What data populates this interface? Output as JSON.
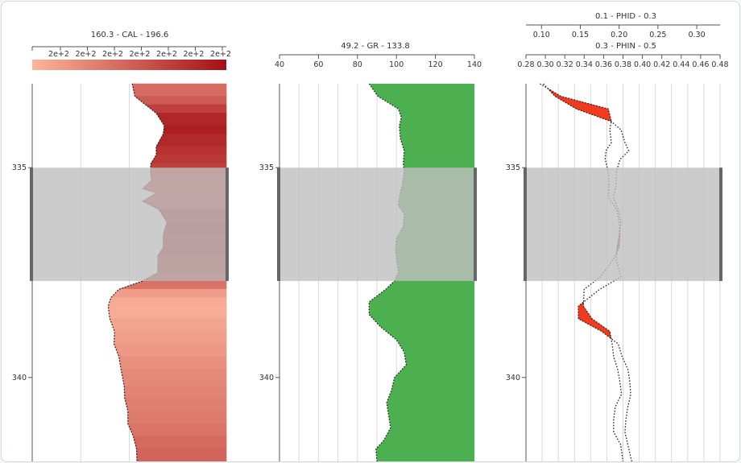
{
  "colors": {
    "cal_light": "#fcb59c",
    "cal_dark": "#a40f15",
    "gr_fill": "#4caf50",
    "zone_fill": "#bfbfbf",
    "crossover_fill": "#f03b20"
  },
  "chart_data": [
    {
      "type": "area",
      "title": "160.3 - CAL - 196.6",
      "xlim": [
        160.3,
        196.6
      ],
      "ylim": [
        333,
        342
      ],
      "y_ticks": [
        335,
        340
      ],
      "y_tick_labels": [
        "335",
        "340"
      ],
      "x_tick_labels": [
        "2e+2",
        "2e+2",
        "2e+2",
        "2e+2",
        "2e+2",
        "2e+2",
        "2e+2"
      ],
      "colorbar": true,
      "series": [
        {
          "depth": [
            333.0,
            333.3,
            333.5,
            333.7,
            334.0,
            334.2,
            334.5,
            334.7,
            334.9,
            335.1,
            335.3,
            335.5,
            335.6,
            335.8,
            336.0,
            336.3,
            336.6,
            336.9,
            337.1,
            337.5,
            337.7,
            337.9,
            338.1,
            338.3,
            338.6,
            338.9,
            339.2,
            339.5,
            339.8,
            340.2,
            340.5,
            340.8,
            341.1,
            341.4,
            341.7,
            342.0
          ],
          "values": [
            179,
            179.5,
            181.5,
            183.5,
            185,
            184.8,
            183.5,
            183.5,
            182.5,
            182.4,
            182.6,
            181,
            183.5,
            181,
            184,
            185.5,
            184.8,
            184.8,
            183.8,
            183.8,
            181,
            176.5,
            175,
            174.5,
            174.8,
            175.7,
            175.6,
            176.5,
            176.9,
            177.5,
            177.6,
            178.2,
            178.2,
            179.2,
            179.8,
            179.9
          ]
        }
      ]
    },
    {
      "type": "area",
      "title": "49.2 - GR - 133.8",
      "xlim": [
        40,
        140
      ],
      "x_ticks": [
        40,
        60,
        80,
        100,
        120,
        140
      ],
      "x_tick_labels": [
        "40",
        "60",
        "80",
        "100",
        "120",
        "140"
      ],
      "ylim": [
        333,
        342
      ],
      "y_ticks": [
        335,
        340
      ],
      "y_tick_labels": [
        "335",
        "340"
      ],
      "series": [
        {
          "depth": [
            333.0,
            333.3,
            333.6,
            333.8,
            334.0,
            334.3,
            334.6,
            334.9,
            335.1,
            335.4,
            335.7,
            335.9,
            336.1,
            336.4,
            336.7,
            337.0,
            337.3,
            337.5,
            337.7,
            337.9,
            338.2,
            338.5,
            338.8,
            339.1,
            339.4,
            339.7,
            340.0,
            340.3,
            340.6,
            340.9,
            341.2,
            341.5,
            341.7,
            342.0
          ],
          "values": [
            86,
            90.5,
            101,
            102.5,
            101.5,
            102,
            104,
            103.5,
            104,
            103,
            101.5,
            101,
            104,
            103.5,
            100,
            99.5,
            100.5,
            101,
            99,
            94.5,
            86,
            86,
            92,
            100,
            104,
            105,
            99,
            97.5,
            95,
            96,
            97,
            93.5,
            89.5,
            90
          ]
        }
      ]
    },
    {
      "type": "line",
      "title": "0.1 - PHID - 0.3",
      "xlim": [
        0.08,
        0.33
      ],
      "x_ticks": [
        0.1,
        0.15,
        0.2,
        0.25,
        0.3
      ],
      "x_tick_labels": [
        "0.10",
        "0.15",
        "0.20",
        "0.25",
        "0.30"
      ],
      "ylim": [
        333,
        342
      ],
      "series": [
        {
          "name": "PHID",
          "depth": [
            333.0,
            333.3,
            333.6,
            333.9,
            334.1,
            334.4,
            334.6,
            334.8,
            335.1,
            335.4,
            335.7,
            336.0,
            336.3,
            336.6,
            336.9,
            337.2,
            337.6,
            337.9,
            338.3,
            338.6,
            338.9,
            339.2,
            339.5,
            339.8,
            340.1,
            340.4,
            340.7,
            341.0,
            341.3,
            341.6,
            342.0
          ],
          "values": [
            0.098,
            0.125,
            0.186,
            0.19,
            0.188,
            0.19,
            0.183,
            0.182,
            0.186,
            0.187,
            0.186,
            0.197,
            0.2,
            0.201,
            0.2,
            0.192,
            0.176,
            0.155,
            0.154,
            0.165,
            0.188,
            0.191,
            0.193,
            0.198,
            0.201,
            0.203,
            0.195,
            0.193,
            0.193,
            0.202,
            0.205
          ]
        }
      ]
    },
    {
      "type": "line",
      "title": "0.3 - PHIN - 0.5",
      "xlim": [
        0.28,
        0.48
      ],
      "x_ticks": [
        0.28,
        0.3,
        0.32,
        0.34,
        0.36,
        0.38,
        0.4,
        0.42,
        0.44,
        0.46,
        0.48
      ],
      "x_tick_labels": [
        "0.28",
        "0.30",
        "0.32",
        "0.34",
        "0.36",
        "0.38",
        "0.40",
        "0.42",
        "0.44",
        "0.46",
        "0.48"
      ],
      "ylim": [
        333,
        342
      ],
      "y_ticks": [
        335,
        340
      ],
      "y_tick_labels": [
        "335",
        "340"
      ],
      "series": [
        {
          "name": "PHIN",
          "depth": [
            333.0,
            333.3,
            333.6,
            333.9,
            334.1,
            334.4,
            334.6,
            334.8,
            335.1,
            335.4,
            335.7,
            336.0,
            336.3,
            336.6,
            336.9,
            337.2,
            337.6,
            337.9,
            338.3,
            338.6,
            338.9,
            339.2,
            339.5,
            339.8,
            340.1,
            340.4,
            340.7,
            341.0,
            341.3,
            341.6,
            342.0
          ],
          "values": [
            0.298,
            0.31,
            0.332,
            0.368,
            0.378,
            0.382,
            0.386,
            0.377,
            0.373,
            0.373,
            0.37,
            0.375,
            0.378,
            0.376,
            0.374,
            0.373,
            0.378,
            0.356,
            0.334,
            0.334,
            0.358,
            0.375,
            0.379,
            0.385,
            0.387,
            0.388,
            0.385,
            0.383,
            0.382,
            0.385,
            0.389
          ]
        }
      ]
    }
  ],
  "zone": {
    "from": 335.0,
    "to": 337.7
  }
}
